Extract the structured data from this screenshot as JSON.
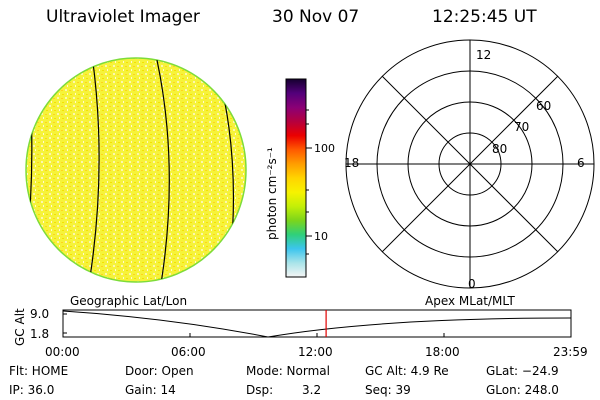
{
  "header": {
    "instrument": "Ultraviolet Imager",
    "date": "30 Nov 07",
    "time": "12:25:45 UT"
  },
  "colorbar": {
    "unit_label": "photon cm⁻²s⁻¹",
    "tick_labels": [
      "100",
      "10"
    ],
    "stops": [
      "#f5f5f5",
      "#a9e4e9",
      "#3cc5ee",
      "#2fd07a",
      "#7cd51b",
      "#c4ef07",
      "#f7f200",
      "#ffd400",
      "#ff9d00",
      "#ff5a00",
      "#eb0000",
      "#b5003f",
      "#8a0076",
      "#53007a",
      "#15002f"
    ]
  },
  "polar_plot": {
    "ring_labels": [
      "60",
      "70",
      "80"
    ],
    "mlt_labels": {
      "top": "12",
      "left": "18",
      "right": "6",
      "bottom": "0"
    }
  },
  "labels": {
    "geographic": "Geographic Lat/Lon",
    "apex": "Apex MLat/MLT"
  },
  "timeline": {
    "axis_title": "GC Alt",
    "y_ticks": [
      "9.0",
      "1.8"
    ],
    "x_ticks": [
      "00:00",
      "06:00",
      "12:00",
      "18:00",
      "23:59"
    ],
    "marker_time_hours": 12.43
  },
  "info": {
    "flt": "Flt: HOME",
    "ip": "IP: 36.0",
    "door": "Door: Open",
    "gain": "Gain: 14",
    "mode": "Mode: Normal",
    "dsp": "Dsp:",
    "dsp_value": "3.2",
    "gc_alt": "GC Alt: 4.9 Re",
    "seq": "Seq: 39",
    "glat": "GLat: −24.9",
    "glon": "GLon: 248.0"
  }
}
